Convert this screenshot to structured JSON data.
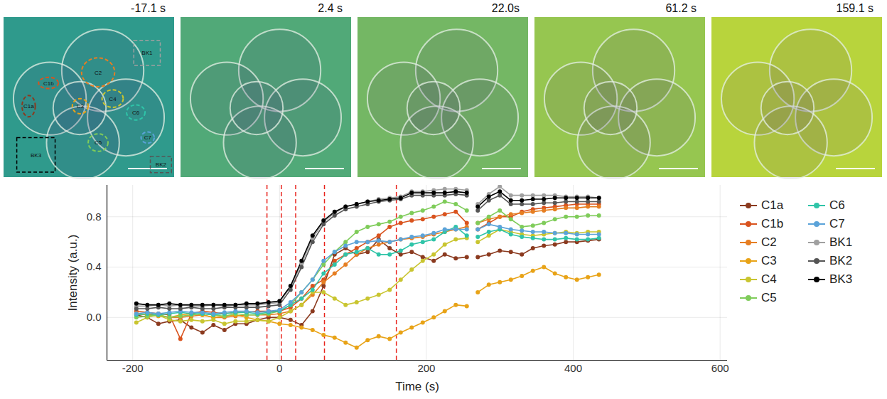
{
  "chart_data": {
    "type": "line",
    "x_label": "Time (s)",
    "y_label": "Intensity (a.u.)",
    "xlim": [
      -235,
      610
    ],
    "xticks": [
      -200,
      0,
      200,
      400,
      600
    ],
    "ylim": [
      -0.34,
      1.05
    ],
    "yticks": [
      {
        "value": 0,
        "label": "0.0"
      },
      {
        "value": 0.4,
        "label": "0.4"
      },
      {
        "value": 0.8,
        "label": "0.8"
      }
    ],
    "grid": true,
    "legend": "right",
    "marker": "circle",
    "line_style": "solid",
    "frames": [
      {
        "time": -17.1,
        "label": "-17.1 s"
      },
      {
        "time": 2.4,
        "label": "2.4 s"
      },
      {
        "time": 22.0,
        "label": "22.0s"
      },
      {
        "time": 61.2,
        "label": "61.2 s"
      },
      {
        "time": 159.1,
        "label": "159.1 s"
      }
    ],
    "x": [
      -195,
      -180,
      -165,
      -150,
      -135,
      -120,
      -105,
      -90,
      -75,
      -60,
      -45,
      -30,
      -15,
      0,
      15,
      30,
      45,
      60,
      75,
      90,
      105,
      120,
      135,
      150,
      165,
      180,
      195,
      210,
      225,
      240,
      255,
      262,
      270,
      285,
      300,
      315,
      330,
      345,
      360,
      375,
      390,
      405,
      420,
      435
    ],
    "series": [
      {
        "name": "C1a",
        "color": "#8b3a1f",
        "values": [
          0.02,
          0.0,
          -0.05,
          -0.03,
          -0.02,
          -0.08,
          -0.12,
          -0.06,
          -0.1,
          -0.05,
          -0.05,
          -0.02,
          0.0,
          0.0,
          -0.02,
          -0.06,
          0.05,
          0.25,
          0.5,
          0.55,
          0.5,
          0.52,
          0.62,
          0.55,
          0.5,
          0.52,
          0.48,
          0.45,
          0.5,
          0.47,
          0.48,
          null,
          0.48,
          0.5,
          0.53,
          0.52,
          0.5,
          0.55,
          0.57,
          0.58,
          0.6,
          0.6,
          0.61,
          0.62
        ]
      },
      {
        "name": "C1b",
        "color": "#d9531e",
        "values": [
          0.05,
          0.04,
          0.03,
          0.02,
          -0.17,
          0.03,
          0.05,
          0.04,
          0.03,
          0.04,
          0.04,
          0.05,
          0.05,
          0.05,
          0.08,
          0.15,
          0.25,
          0.3,
          0.45,
          0.5,
          0.55,
          0.6,
          0.65,
          0.72,
          0.75,
          0.77,
          0.78,
          0.8,
          0.82,
          0.84,
          0.75,
          null,
          0.7,
          0.75,
          0.8,
          0.8,
          0.84,
          0.86,
          0.87,
          0.88,
          0.89,
          0.9,
          0.9,
          0.9
        ]
      },
      {
        "name": "C2",
        "color": "#e67e22",
        "values": [
          0.03,
          0.02,
          0.02,
          0.0,
          0.0,
          0.01,
          0.02,
          0.0,
          0.0,
          0.01,
          0.02,
          0.02,
          0.02,
          0.03,
          0.05,
          0.1,
          0.18,
          0.28,
          0.35,
          0.42,
          0.5,
          0.55,
          0.58,
          0.6,
          0.62,
          0.63,
          0.64,
          0.66,
          0.68,
          0.7,
          0.72,
          null,
          0.75,
          0.78,
          0.8,
          0.82,
          0.83,
          0.84,
          0.85,
          0.86,
          0.87,
          0.87,
          0.88,
          0.88
        ]
      },
      {
        "name": "C3",
        "color": "#e8a317",
        "values": [
          0.03,
          0.02,
          0.01,
          0.0,
          0.02,
          0.03,
          0.02,
          0.0,
          0.01,
          0.02,
          0.0,
          -0.02,
          -0.03,
          -0.05,
          -0.06,
          -0.08,
          -0.1,
          -0.14,
          -0.16,
          -0.2,
          -0.24,
          -0.18,
          -0.15,
          -0.17,
          -0.12,
          -0.08,
          -0.04,
          0.0,
          0.05,
          0.1,
          0.09,
          null,
          0.2,
          0.26,
          0.28,
          0.3,
          0.33,
          0.37,
          0.4,
          0.35,
          0.32,
          0.3,
          0.32,
          0.34
        ]
      },
      {
        "name": "C4",
        "color": "#c9c530",
        "values": [
          -0.04,
          0.0,
          0.02,
          -0.02,
          -0.03,
          -0.02,
          -0.03,
          -0.02,
          -0.05,
          -0.03,
          -0.03,
          -0.02,
          -0.03,
          0.0,
          0.05,
          0.1,
          0.2,
          0.2,
          0.15,
          0.1,
          0.12,
          0.15,
          0.18,
          0.22,
          0.3,
          0.38,
          0.45,
          0.5,
          0.58,
          0.62,
          0.63,
          null,
          0.6,
          0.65,
          0.7,
          0.68,
          0.66,
          0.65,
          0.66,
          0.67,
          0.68,
          0.67,
          0.68,
          0.68
        ]
      },
      {
        "name": "C5",
        "color": "#7fcc5a",
        "values": [
          0.0,
          0.01,
          0.02,
          0.0,
          0.01,
          0.02,
          0.03,
          0.02,
          0.01,
          0.03,
          0.02,
          0.02,
          0.03,
          0.05,
          0.1,
          0.2,
          0.3,
          0.42,
          0.52,
          0.6,
          0.68,
          0.72,
          0.74,
          0.76,
          0.8,
          0.83,
          0.85,
          0.88,
          0.92,
          0.9,
          0.85,
          null,
          0.75,
          0.8,
          0.85,
          0.78,
          0.72,
          0.73,
          0.75,
          0.78,
          0.8,
          0.8,
          0.81,
          0.81
        ]
      },
      {
        "name": "C6",
        "color": "#2fc4a8",
        "values": [
          0.02,
          0.03,
          0.02,
          0.03,
          0.04,
          0.03,
          0.03,
          0.02,
          0.03,
          0.04,
          0.04,
          0.03,
          0.04,
          0.05,
          0.1,
          0.15,
          0.22,
          0.35,
          0.42,
          0.5,
          0.52,
          0.55,
          0.5,
          0.5,
          0.53,
          0.58,
          0.6,
          0.62,
          0.68,
          0.72,
          0.65,
          null,
          0.64,
          0.68,
          0.7,
          0.66,
          0.64,
          0.63,
          0.62,
          0.62,
          0.63,
          0.62,
          0.62,
          0.63
        ]
      },
      {
        "name": "C7",
        "color": "#5ba3d9",
        "values": [
          0.03,
          0.04,
          0.03,
          0.04,
          0.05,
          0.04,
          0.04,
          0.03,
          0.04,
          0.05,
          0.05,
          0.04,
          0.05,
          0.06,
          0.12,
          0.2,
          0.3,
          0.45,
          0.52,
          0.57,
          0.6,
          0.6,
          0.61,
          0.6,
          0.62,
          0.64,
          0.65,
          0.67,
          0.7,
          0.7,
          0.7,
          null,
          0.7,
          0.74,
          0.72,
          0.7,
          0.69,
          0.68,
          0.68,
          0.67,
          0.67,
          0.66,
          0.66,
          0.66
        ]
      },
      {
        "name": "BK1",
        "color": "#a0a0a0",
        "values": [
          0.09,
          0.09,
          0.1,
          0.09,
          0.1,
          0.09,
          0.09,
          0.1,
          0.09,
          0.1,
          0.1,
          0.1,
          0.11,
          0.12,
          0.24,
          0.43,
          0.63,
          0.76,
          0.83,
          0.88,
          0.9,
          0.92,
          0.94,
          0.95,
          0.96,
          1.0,
          1.0,
          1.01,
          1.02,
          1.02,
          1.01,
          null,
          0.9,
          0.98,
          1.04,
          0.97,
          0.97,
          0.97,
          0.97,
          0.97,
          0.96,
          0.96,
          0.96,
          0.95
        ]
      },
      {
        "name": "BK2",
        "color": "#555555",
        "values": [
          0.07,
          0.07,
          0.08,
          0.07,
          0.07,
          0.08,
          0.07,
          0.07,
          0.08,
          0.08,
          0.08,
          0.08,
          0.09,
          0.1,
          0.22,
          0.4,
          0.6,
          0.74,
          0.81,
          0.86,
          0.88,
          0.9,
          0.92,
          0.93,
          0.94,
          0.97,
          0.97,
          0.97,
          0.97,
          0.98,
          0.97,
          null,
          0.85,
          0.93,
          0.97,
          0.9,
          0.9,
          0.9,
          0.91,
          0.91,
          0.92,
          0.92,
          0.92,
          0.92
        ]
      },
      {
        "name": "BK3",
        "color": "#000000",
        "values": [
          0.11,
          0.1,
          0.1,
          0.11,
          0.1,
          0.1,
          0.1,
          0.1,
          0.1,
          0.1,
          0.11,
          0.11,
          0.12,
          0.13,
          0.25,
          0.45,
          0.65,
          0.77,
          0.84,
          0.88,
          0.9,
          0.92,
          0.93,
          0.94,
          0.95,
          0.99,
          0.99,
          0.99,
          0.99,
          1.0,
          0.99,
          null,
          0.88,
          0.96,
          1.0,
          0.93,
          0.93,
          0.94,
          0.94,
          0.95,
          0.95,
          0.95,
          0.95,
          0.95
        ]
      }
    ]
  }
}
